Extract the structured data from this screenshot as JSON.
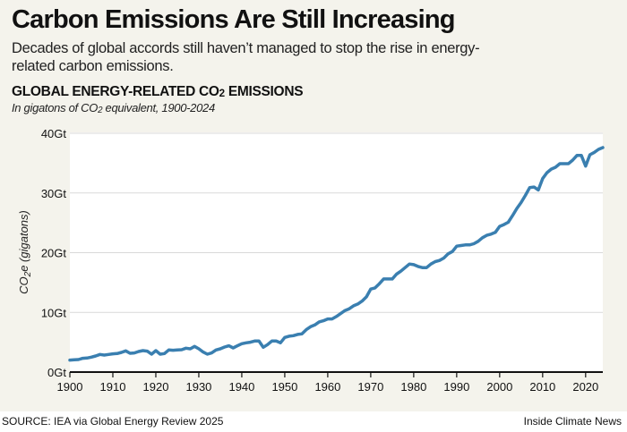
{
  "header": {
    "title": "Carbon Emissions Are Still Increasing",
    "subtitle": "Decades of global accords still haven’t managed to stop the rise in energy-related carbon emissions."
  },
  "footer": {
    "source": "SOURCE: IEA via Global Energy Review 2025",
    "credit": "Inside Climate News"
  },
  "colors": {
    "line": "#3a7fb0",
    "panel_bg": "#f4f3ec",
    "plot_bg": "#ffffff",
    "grid": "#d9d9d9",
    "axis": "#111111"
  },
  "chart_data": {
    "type": "line",
    "title_parts": [
      "GLOBAL ENERGY-RELATED CO",
      "2",
      " EMISSIONS"
    ],
    "subtitle_parts": [
      "In gigatons of CO",
      "2",
      " equivalent, 1900-2024"
    ],
    "ylabel_parts": [
      "CO",
      "2",
      "e (gigatons)"
    ],
    "xlabel": "",
    "xlim": [
      1900,
      2024
    ],
    "ylim": [
      0,
      40
    ],
    "x_ticks": [
      1900,
      1910,
      1920,
      1930,
      1940,
      1950,
      1960,
      1970,
      1980,
      1990,
      2000,
      2010,
      2020
    ],
    "x_tick_labels": [
      "1900",
      "1910",
      "1920",
      "1930",
      "1940",
      "1950",
      "1960",
      "1970",
      "1980",
      "1990",
      "2000",
      "2010",
      "2020"
    ],
    "y_ticks": [
      0,
      10,
      20,
      30,
      40
    ],
    "y_tick_labels": [
      "0Gt",
      "10Gt",
      "20Gt",
      "30Gt",
      "40Gt"
    ],
    "grid": "horizontal",
    "legend": "none",
    "series": [
      {
        "name": "Global energy-related CO2 emissions (Gt)",
        "x": [
          1900,
          1901,
          1902,
          1903,
          1904,
          1905,
          1906,
          1907,
          1908,
          1909,
          1910,
          1911,
          1912,
          1913,
          1914,
          1915,
          1916,
          1917,
          1918,
          1919,
          1920,
          1921,
          1922,
          1923,
          1924,
          1925,
          1926,
          1927,
          1928,
          1929,
          1930,
          1931,
          1932,
          1933,
          1934,
          1935,
          1936,
          1937,
          1938,
          1939,
          1940,
          1941,
          1942,
          1943,
          1944,
          1945,
          1946,
          1947,
          1948,
          1949,
          1950,
          1951,
          1952,
          1953,
          1954,
          1955,
          1956,
          1957,
          1958,
          1959,
          1960,
          1961,
          1962,
          1963,
          1964,
          1965,
          1966,
          1967,
          1968,
          1969,
          1970,
          1971,
          1972,
          1973,
          1974,
          1975,
          1976,
          1977,
          1978,
          1979,
          1980,
          1981,
          1982,
          1983,
          1984,
          1985,
          1986,
          1987,
          1988,
          1989,
          1990,
          1991,
          1992,
          1993,
          1994,
          1995,
          1996,
          1997,
          1998,
          1999,
          2000,
          2001,
          2002,
          2003,
          2004,
          2005,
          2006,
          2007,
          2008,
          2009,
          2010,
          2011,
          2012,
          2013,
          2014,
          2015,
          2016,
          2017,
          2018,
          2019,
          2020,
          2021,
          2022,
          2023,
          2024
        ],
        "values": [
          2.0,
          2.05,
          2.1,
          2.3,
          2.35,
          2.5,
          2.7,
          2.95,
          2.85,
          2.95,
          3.05,
          3.1,
          3.3,
          3.55,
          3.15,
          3.2,
          3.45,
          3.6,
          3.5,
          3.0,
          3.6,
          3.0,
          3.1,
          3.7,
          3.65,
          3.7,
          3.75,
          4.0,
          3.9,
          4.3,
          3.9,
          3.35,
          3.0,
          3.2,
          3.7,
          3.9,
          4.2,
          4.4,
          4.05,
          4.4,
          4.75,
          4.9,
          5.0,
          5.2,
          5.2,
          4.15,
          4.6,
          5.2,
          5.2,
          4.9,
          5.8,
          6.0,
          6.1,
          6.3,
          6.4,
          7.1,
          7.6,
          7.9,
          8.4,
          8.6,
          8.9,
          8.9,
          9.3,
          9.8,
          10.3,
          10.6,
          11.1,
          11.4,
          11.9,
          12.6,
          13.9,
          14.1,
          14.8,
          15.6,
          15.6,
          15.6,
          16.4,
          16.9,
          17.5,
          18.1,
          18.0,
          17.7,
          17.5,
          17.5,
          18.1,
          18.5,
          18.7,
          19.1,
          19.8,
          20.2,
          21.1,
          21.2,
          21.3,
          21.3,
          21.5,
          21.9,
          22.5,
          22.9,
          23.1,
          23.4,
          24.4,
          24.7,
          25.1,
          26.2,
          27.4,
          28.4,
          29.6,
          30.9,
          31.0,
          30.5,
          32.4,
          33.4,
          34.0,
          34.3,
          34.9,
          34.9,
          34.9,
          35.5,
          36.3,
          36.3,
          34.5,
          36.4,
          36.8,
          37.3,
          37.6
        ]
      }
    ]
  }
}
